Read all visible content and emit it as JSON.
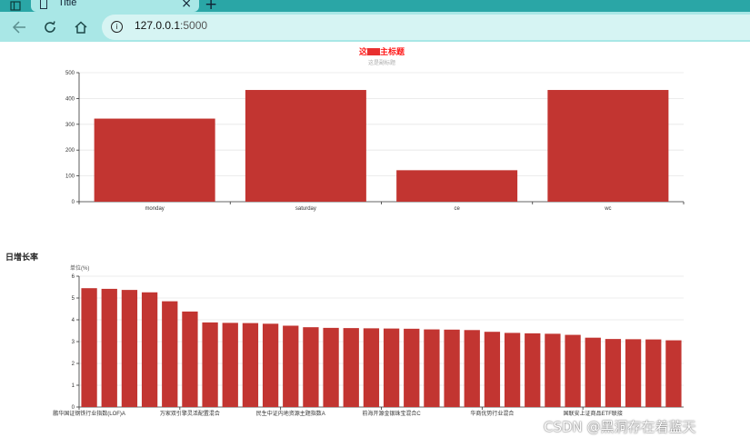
{
  "browser": {
    "tab_title": "Title",
    "close_glyph": "×",
    "new_tab_glyph": "+",
    "url_main": "127.0.0.1",
    "url_port": ":5000",
    "info_glyph": "i"
  },
  "chart1": {
    "title_visible": "主标题",
    "title_prefix": "这",
    "subtitle": "这是副标题",
    "chart_data": {
      "type": "bar",
      "categories": [
        "monday",
        "saturday",
        "ce",
        "wc"
      ],
      "values": [
        322,
        433,
        122,
        433
      ],
      "ylim": [
        0,
        500
      ],
      "yticks": [
        0,
        100,
        200,
        300,
        400,
        500
      ],
      "color": "#c23531",
      "grid": true
    }
  },
  "chart2": {
    "section_title": "日增长率",
    "unit": "单位(%)",
    "chart_data": {
      "type": "bar",
      "ylim": [
        0,
        6
      ],
      "yticks": [
        0,
        1,
        2,
        3,
        4,
        5,
        6
      ],
      "color": "#c23531",
      "grid": true,
      "values": [
        5.45,
        5.42,
        5.37,
        5.26,
        4.85,
        4.38,
        3.88,
        3.86,
        3.85,
        3.82,
        3.73,
        3.66,
        3.63,
        3.62,
        3.61,
        3.6,
        3.59,
        3.56,
        3.55,
        3.53,
        3.45,
        3.4,
        3.38,
        3.36,
        3.31,
        3.18,
        3.12,
        3.11,
        3.1,
        3.06
      ],
      "visible_labels": [
        {
          "index": 0,
          "text": "鹏华国证钢铁行业指数(LOF)A"
        },
        {
          "index": 5,
          "text": "万家双引擎灵活配置混合"
        },
        {
          "index": 10,
          "text": "民生中证内地资源主题指数A"
        },
        {
          "index": 15,
          "text": "前海开源金银珠宝混合C"
        },
        {
          "index": 20,
          "text": "华商优势行业混合"
        },
        {
          "index": 25,
          "text": "国联安上证商品ETF联接"
        }
      ]
    }
  },
  "watermark": "CSDN @黑洞存在着蓝天"
}
